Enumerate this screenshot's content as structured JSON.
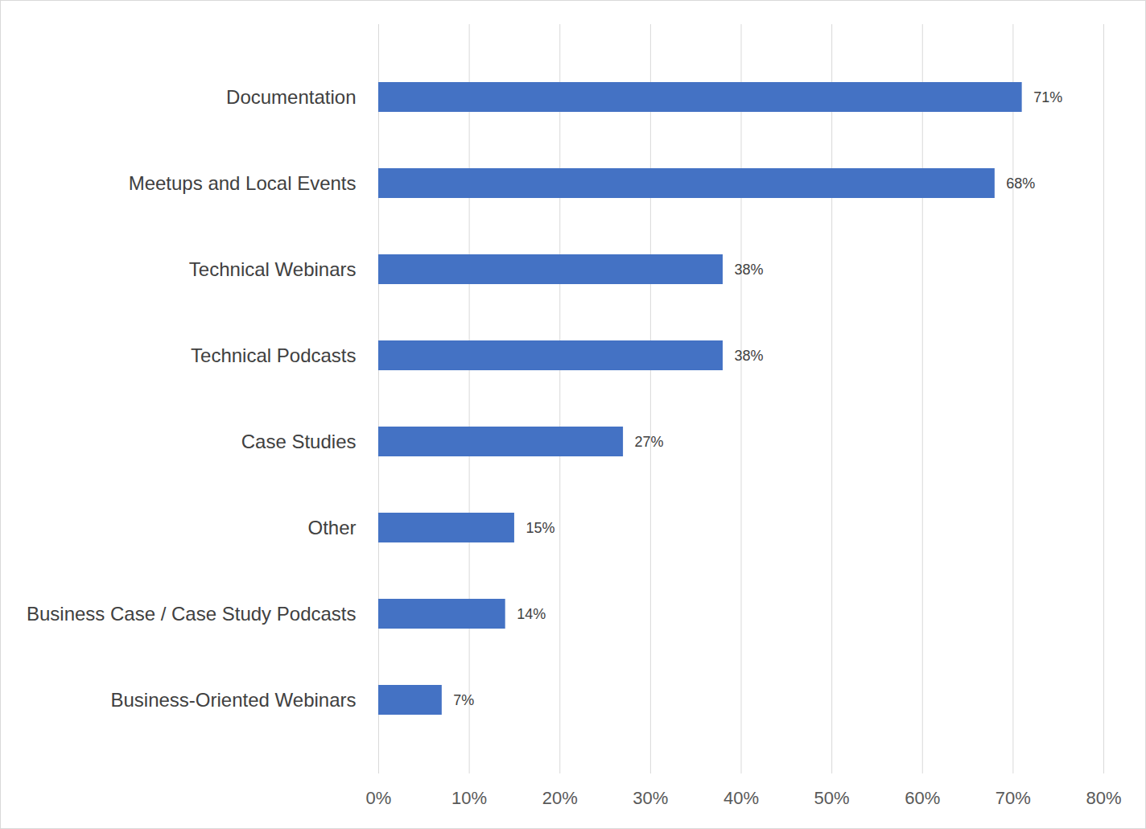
{
  "chart_data": {
    "type": "bar",
    "orientation": "horizontal",
    "categories": [
      "Documentation",
      "Meetups and Local Events",
      "Technical Webinars",
      "Technical Podcasts",
      "Case Studies",
      "Other",
      "Business Case / Case Study Podcasts",
      "Business-Oriented Webinars"
    ],
    "values": [
      71,
      68,
      38,
      38,
      27,
      15,
      14,
      7
    ],
    "value_labels": [
      "71%",
      "68%",
      "38%",
      "38%",
      "27%",
      "15%",
      "14%",
      "7%"
    ],
    "data_labels": true,
    "color": "#4472c4",
    "xlim": [
      0,
      80
    ],
    "xticks": [
      {
        "value": 0,
        "label": "0%"
      },
      {
        "value": 10,
        "label": "10%"
      },
      {
        "value": 20,
        "label": "20%"
      },
      {
        "value": 30,
        "label": "30%"
      },
      {
        "value": 40,
        "label": "40%"
      },
      {
        "value": 50,
        "label": "50%"
      },
      {
        "value": 60,
        "label": "60%"
      },
      {
        "value": 70,
        "label": "70%"
      },
      {
        "value": 80,
        "label": "80%"
      }
    ],
    "grid": true
  }
}
